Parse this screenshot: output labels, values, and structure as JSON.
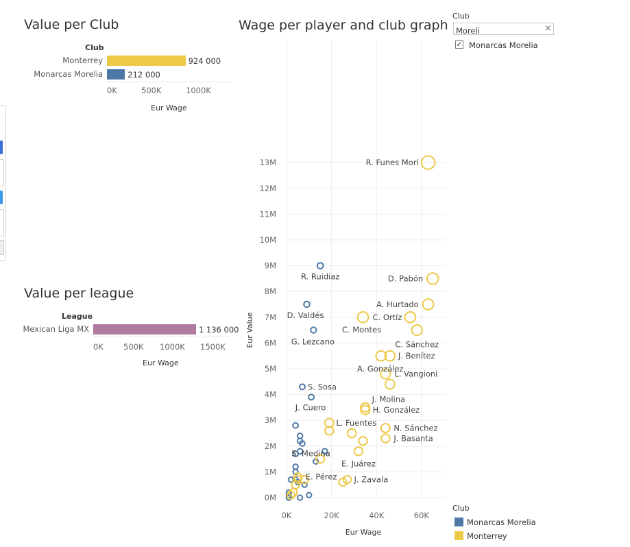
{
  "club_chart": {
    "title": "Value per Club",
    "header": "Club",
    "xlabel": "Eur Wage",
    "ticks": [
      "0K",
      "500K",
      "1000K"
    ],
    "rows": [
      {
        "label": "Monterrey",
        "value_label": "924 000"
      },
      {
        "label": "Monarcas Morelia",
        "value_label": "212 000"
      }
    ]
  },
  "league_chart": {
    "title": "Value per league",
    "header": "League",
    "xlabel": "Eur Wage",
    "ticks": [
      "0K",
      "500K",
      "1000K",
      "1500K"
    ],
    "rows": [
      {
        "label": "Mexican Liga MX",
        "value_label": "1 136 000"
      }
    ]
  },
  "scatter": {
    "title": "Wage per player and club graph",
    "xlabel": "Eur Wage",
    "ylabel": "Eur Value",
    "xticks": [
      "0K",
      "20K",
      "40K",
      "60K"
    ],
    "yticks": [
      "0M",
      "1M",
      "2M",
      "3M",
      "4M",
      "5M",
      "6M",
      "7M",
      "8M",
      "9M",
      "10M",
      "11M",
      "12M",
      "13M"
    ]
  },
  "filter": {
    "title": "Club",
    "value": "Moreli",
    "option": "Monarcas Morelia",
    "checked": "✓"
  },
  "legend": {
    "title": "Club",
    "items": [
      {
        "label": "Monarcas Morelia",
        "color": "#4e79a7"
      },
      {
        "label": "Monterrey",
        "color": "#edc948"
      }
    ]
  },
  "colors": {
    "morelia": "#4e79a7",
    "monterrey": "#edc948",
    "league": "#b07aa1"
  },
  "chart_data": [
    {
      "type": "bar",
      "title": "Value per Club",
      "categories": [
        "Monterrey",
        "Monarcas Morelia"
      ],
      "values": [
        924000,
        212000
      ],
      "xlabel": "Eur Wage",
      "ylabel": "Club",
      "xlim": [
        0,
        1000000
      ]
    },
    {
      "type": "bar",
      "title": "Value per league",
      "categories": [
        "Mexican Liga MX"
      ],
      "values": [
        1136000
      ],
      "xlabel": "Eur Wage",
      "ylabel": "League",
      "xlim": [
        0,
        1500000
      ]
    },
    {
      "type": "scatter",
      "title": "Wage per player and club graph",
      "xlabel": "Eur Wage",
      "ylabel": "Eur Value",
      "xlim": [
        0,
        65000
      ],
      "ylim": [
        0,
        13000000
      ],
      "grid": true,
      "legend": "bottom-right",
      "series": [
        {
          "name": "Monarcas Morelia",
          "points": [
            {
              "x": 15000,
              "y": 9000000,
              "label": "R. Ruidíaz"
            },
            {
              "x": 9000,
              "y": 7500000,
              "label": "D. Valdés"
            },
            {
              "x": 12000,
              "y": 6500000,
              "label": "G. Lezcano"
            },
            {
              "x": 7000,
              "y": 4300000,
              "label": "S. Sosa"
            },
            {
              "x": 11000,
              "y": 3900000,
              "label": "J. Cuero"
            },
            {
              "x": 4000,
              "y": 2800000
            },
            {
              "x": 6000,
              "y": 2400000
            },
            {
              "x": 6000,
              "y": 2200000
            },
            {
              "x": 7000,
              "y": 2100000
            },
            {
              "x": 17000,
              "y": 1800000,
              "label": "S. Medina"
            },
            {
              "x": 6000,
              "y": 1800000
            },
            {
              "x": 4000,
              "y": 1700000
            },
            {
              "x": 13000,
              "y": 1400000,
              "label": "E. Pérez"
            },
            {
              "x": 4000,
              "y": 1200000
            },
            {
              "x": 4000,
              "y": 1000000
            },
            {
              "x": 2000,
              "y": 700000
            },
            {
              "x": 4000,
              "y": 700000
            },
            {
              "x": 5000,
              "y": 600000
            },
            {
              "x": 8000,
              "y": 500000
            },
            {
              "x": 1000,
              "y": 200000
            },
            {
              "x": 1000,
              "y": 100000
            },
            {
              "x": 1000,
              "y": 0
            },
            {
              "x": 6000,
              "y": 0
            },
            {
              "x": 10000,
              "y": 100000
            }
          ]
        },
        {
          "name": "Monterrey",
          "points": [
            {
              "x": 63000,
              "y": 13000000,
              "label": "R. Funes Mori"
            },
            {
              "x": 65000,
              "y": 8500000,
              "label": "D. Pabón"
            },
            {
              "x": 63000,
              "y": 7500000,
              "label": "A. Hurtado"
            },
            {
              "x": 55000,
              "y": 7000000,
              "label": "C. Ortíz"
            },
            {
              "x": 34000,
              "y": 7000000,
              "label": "C. Montes"
            },
            {
              "x": 58000,
              "y": 6500000,
              "label": "C. Sánchez"
            },
            {
              "x": 46000,
              "y": 5500000,
              "label": "J. Benítez"
            },
            {
              "x": 42000,
              "y": 5500000,
              "label": "A. González"
            },
            {
              "x": 44000,
              "y": 4800000,
              "label": "L. Vangioni"
            },
            {
              "x": 46000,
              "y": 4400000,
              "label": "J. Molina"
            },
            {
              "x": 35000,
              "y": 3500000
            },
            {
              "x": 35000,
              "y": 3400000,
              "label": "H. González"
            },
            {
              "x": 19000,
              "y": 2900000,
              "label": "L. Fuentes"
            },
            {
              "x": 19000,
              "y": 2600000
            },
            {
              "x": 29000,
              "y": 2500000
            },
            {
              "x": 44000,
              "y": 2700000,
              "label": "N. Sánchez"
            },
            {
              "x": 44000,
              "y": 2300000,
              "label": "J. Basanta"
            },
            {
              "x": 34000,
              "y": 2200000
            },
            {
              "x": 32000,
              "y": 1800000,
              "label": "E. Juárez"
            },
            {
              "x": 15000,
              "y": 1500000
            },
            {
              "x": 27000,
              "y": 700000,
              "label": "J. Zavala"
            },
            {
              "x": 25000,
              "y": 600000
            },
            {
              "x": 5000,
              "y": 800000
            },
            {
              "x": 8000,
              "y": 700000
            },
            {
              "x": 5000,
              "y": 700000
            },
            {
              "x": 4000,
              "y": 500000
            },
            {
              "x": 3000,
              "y": 200000
            },
            {
              "x": 2000,
              "y": 100000
            }
          ]
        }
      ]
    }
  ]
}
